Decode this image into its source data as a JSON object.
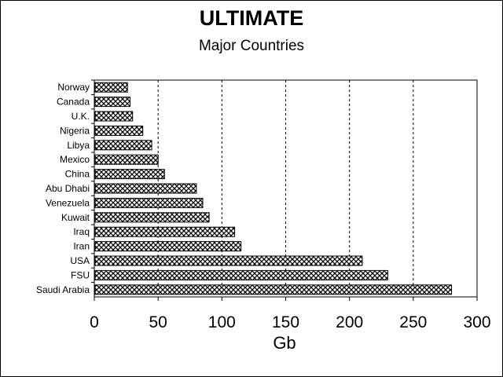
{
  "chart_data": {
    "type": "bar",
    "orientation": "horizontal",
    "title": "ULTIMATE",
    "subtitle": "Major Countries",
    "xlabel": "Gb",
    "ylabel": "",
    "xlim": [
      0,
      300
    ],
    "x_ticks": [
      "0",
      "50",
      "100",
      "150",
      "200",
      "250",
      "300"
    ],
    "grid": "vertical dashed",
    "categories": [
      "Norway",
      "Canada",
      "U.K.",
      "Nigeria",
      "Libya",
      "Mexico",
      "China",
      "Abu Dhabi",
      "Venezuela",
      "Kuwait",
      "Iraq",
      "Iran",
      "USA",
      "FSU",
      "Saudi Arabia"
    ],
    "values": [
      26,
      28,
      30,
      38,
      45,
      50,
      55,
      80,
      85,
      90,
      110,
      115,
      210,
      230,
      280
    ],
    "bar_fill": "crosshatch",
    "colors": {
      "bar_fill": "#ffffff",
      "bar_pattern": "#000000",
      "axis": "#000000",
      "background": "#ffffff"
    }
  }
}
